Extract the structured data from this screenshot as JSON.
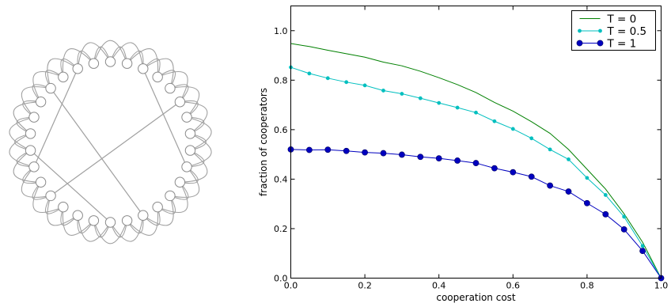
{
  "network": {
    "node_count": 30,
    "neighbors_each_side": 2,
    "node_fill": "#ffffff",
    "node_stroke": "#8a8a8a",
    "edge_color": "#a0a0a0",
    "shortcuts": [
      [
        2,
        9
      ],
      [
        5,
        19
      ],
      [
        13,
        26
      ],
      [
        15,
        22
      ],
      [
        21,
        28
      ]
    ]
  },
  "chart_data": {
    "type": "line",
    "xlabel": "cooperation cost",
    "ylabel": "fraction of cooperators",
    "xlim": [
      0.0,
      1.0
    ],
    "ylim": [
      0.0,
      1.1
    ],
    "xticks": [
      "0.0",
      "0.2",
      "0.4",
      "0.6",
      "0.8",
      "1.0"
    ],
    "yticks": [
      "0.0",
      "0.2",
      "0.4",
      "0.6",
      "0.8",
      "1.0"
    ],
    "grid": false,
    "legend_position": "top-right",
    "x": [
      0.0,
      0.05,
      0.1,
      0.15,
      0.2,
      0.25,
      0.3,
      0.35,
      0.4,
      0.45,
      0.5,
      0.55,
      0.6,
      0.65,
      0.7,
      0.75,
      0.8,
      0.85,
      0.9,
      0.95,
      1.0
    ],
    "series": [
      {
        "name": "T = 0",
        "color": "#008000",
        "marker": "none",
        "values": [
          0.948,
          0.936,
          0.921,
          0.907,
          0.893,
          0.873,
          0.858,
          0.836,
          0.81,
          0.782,
          0.75,
          0.71,
          0.675,
          0.632,
          0.585,
          0.52,
          0.44,
          0.36,
          0.26,
          0.145,
          0.0
        ]
      },
      {
        "name": "T = 0.5",
        "color": "#00bfbf",
        "marker": "small",
        "values": [
          0.852,
          0.827,
          0.808,
          0.792,
          0.779,
          0.758,
          0.745,
          0.727,
          0.708,
          0.689,
          0.669,
          0.634,
          0.603,
          0.565,
          0.52,
          0.48,
          0.405,
          0.336,
          0.248,
          0.13,
          0.0
        ]
      },
      {
        "name": "T = 1",
        "color": "#0000bf",
        "marker": "large",
        "values": [
          0.52,
          0.518,
          0.519,
          0.514,
          0.508,
          0.505,
          0.499,
          0.49,
          0.484,
          0.475,
          0.465,
          0.444,
          0.428,
          0.41,
          0.374,
          0.35,
          0.303,
          0.258,
          0.197,
          0.11,
          0.0
        ]
      }
    ]
  }
}
